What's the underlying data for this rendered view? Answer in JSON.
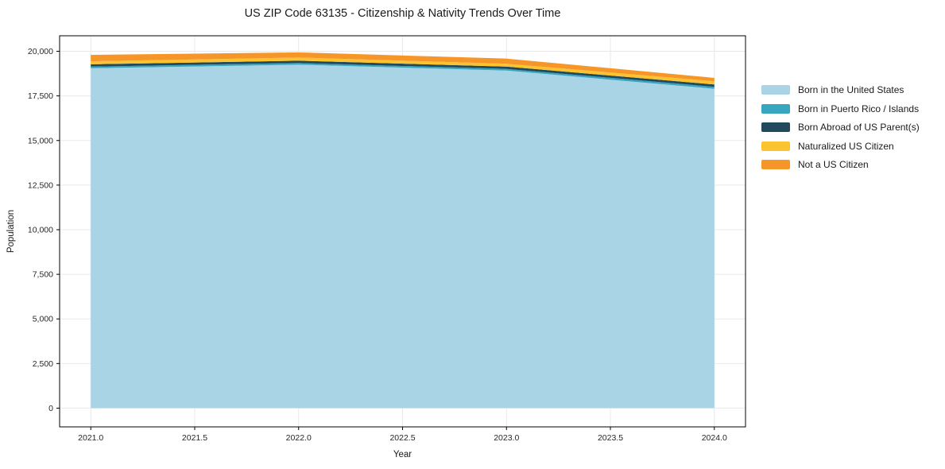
{
  "chart_data": {
    "type": "area",
    "stacked": true,
    "title": "US ZIP Code 63135 - Citizenship & Nativity Trends Over Time",
    "xlabel": "Year",
    "ylabel": "Population",
    "x": [
      2021,
      2022,
      2023,
      2024
    ],
    "series": [
      {
        "name": "Born in the United States",
        "color": "#a8d4e6",
        "values": [
          19050,
          19250,
          18920,
          17900
        ]
      },
      {
        "name": "Born in Puerto Rico / Islands",
        "color": "#38a6c1",
        "values": [
          90,
          90,
          90,
          110
        ]
      },
      {
        "name": "Born Abroad of US Parent(s)",
        "color": "#204a5c",
        "values": [
          130,
          130,
          130,
          130
        ]
      },
      {
        "name": "Naturalized US Citizen",
        "color": "#fcc330",
        "values": [
          170,
          180,
          160,
          180
        ]
      },
      {
        "name": "Not a US Citizen",
        "color": "#f79628",
        "values": [
          360,
          290,
          290,
          190
        ]
      }
    ],
    "xlim": [
      2020.85,
      2024.15
    ],
    "ylim": [
      -1050,
      20870
    ],
    "xticks": {
      "values": [
        2021,
        2021.5,
        2022,
        2022.5,
        2023,
        2023.5,
        2024
      ],
      "labels": [
        "2021.0",
        "2021.5",
        "2022.0",
        "2022.5",
        "2023.0",
        "2023.5",
        "2024.0"
      ]
    },
    "yticks": {
      "values": [
        0,
        2500,
        5000,
        7500,
        10000,
        12500,
        15000,
        17500,
        20000
      ],
      "labels": [
        "0",
        "2,500",
        "5,000",
        "7,500",
        "10,000",
        "12,500",
        "15,000",
        "17,500",
        "20,000"
      ]
    },
    "grid": true,
    "legend_position": "right-outside"
  },
  "colors": {
    "background": "#ffffff",
    "grid": "#e8e8e8",
    "spine": "#000000",
    "tick": "#000000",
    "text": "#1a1a1a"
  }
}
